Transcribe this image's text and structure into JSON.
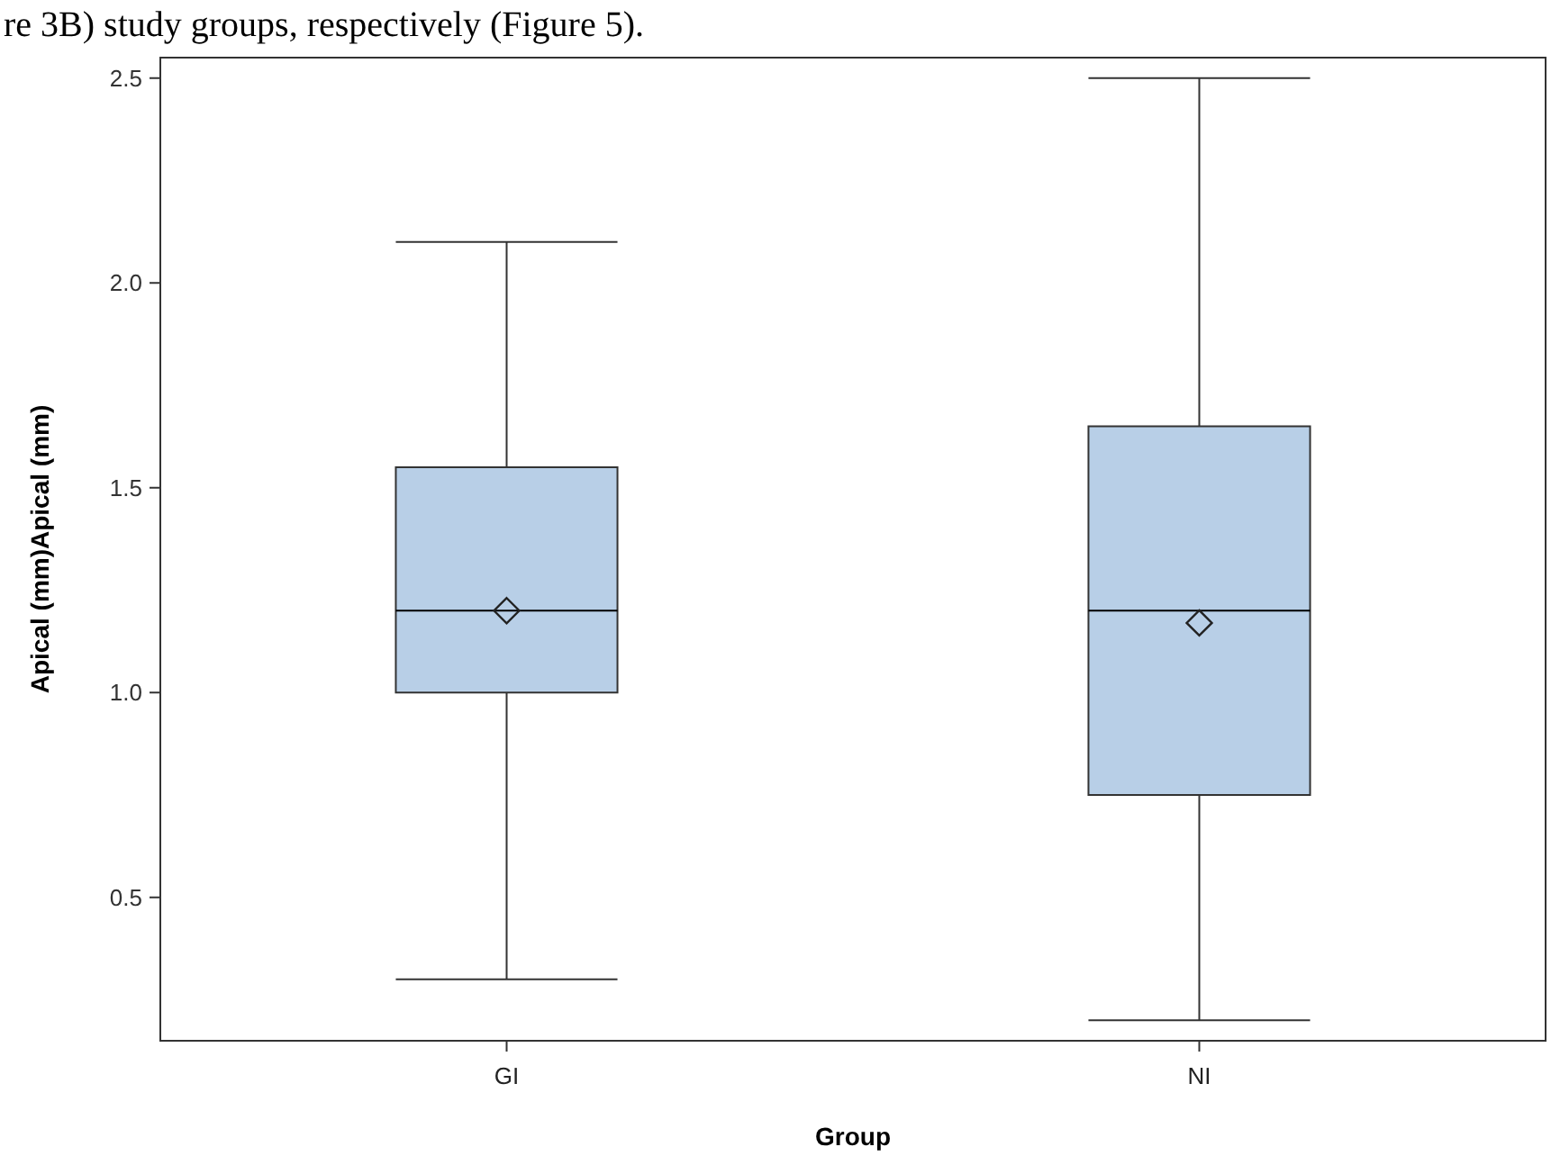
{
  "chart_data": {
    "type": "box",
    "xlabel": "Group",
    "ylabel": "Apical (mm)Apical (mm)",
    "annotations": [
      "re 3B) study groups, respectively (Figure 5)."
    ],
    "categories": [
      "GI",
      "NI"
    ],
    "color": "#b8cfe7",
    "marker": "diamond",
    "boxes": [
      {
        "low": 0.3,
        "q1": 1.0,
        "median": 1.2,
        "q3": 1.55,
        "high": 2.1,
        "mean": 1.2
      },
      {
        "low": 0.2,
        "q1": 0.75,
        "median": 1.2,
        "q3": 1.65,
        "high": 2.5,
        "mean": 1.17
      }
    ],
    "ylim": [
      0.15,
      2.55
    ],
    "yticks": [
      {
        "value": 0.5,
        "label": "0.5"
      },
      {
        "value": 1,
        "label": "1.0"
      },
      {
        "value": 1.5,
        "label": "1.5"
      },
      {
        "value": 2,
        "label": "2.0"
      },
      {
        "value": 2.5,
        "label": "2.5"
      }
    ]
  }
}
